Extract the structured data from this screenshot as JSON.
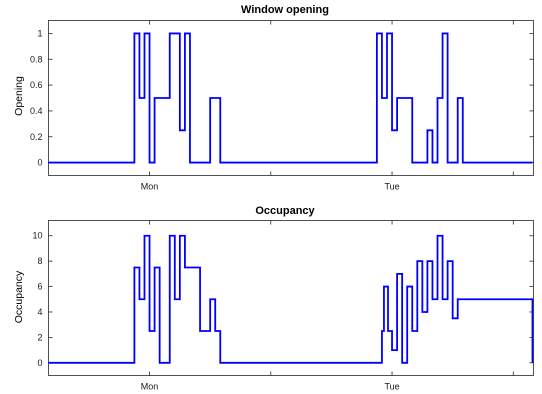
{
  "colors": {
    "series": "#0000ff",
    "axes": "#262626",
    "background": "#ffffff"
  },
  "chart_data": [
    {
      "type": "line",
      "step": true,
      "title": "Window opening",
      "xlabel": "",
      "ylabel": "Opening",
      "xlim": [
        0,
        48
      ],
      "ylim": [
        -0.1,
        1.1
      ],
      "yticks": [
        0,
        0.2,
        0.4,
        0.6,
        0.8,
        1
      ],
      "ytick_labels": [
        "0",
        "0.2",
        "0.4",
        "0.6",
        "0.8",
        "1"
      ],
      "xticks": [
        10,
        34
      ],
      "xtick_labels": [
        "Mon",
        "Tue"
      ],
      "minor_xticks": [
        22,
        46
      ],
      "grid": false,
      "series": [
        {
          "x": [
            0,
            8,
            8.5,
            9,
            9.5,
            10,
            10.5,
            11,
            12,
            12.5,
            13,
            13.5,
            14,
            14.5,
            16,
            17,
            32,
            32.5,
            33,
            33.5,
            34,
            34.5,
            35,
            36,
            37.5,
            38,
            38.5,
            39,
            39.5,
            40,
            40.5,
            41,
            47.9
          ],
          "values": [
            0,
            0,
            1,
            0.5,
            1,
            0,
            0.5,
            0.5,
            1,
            1,
            0.25,
            1,
            0,
            0,
            0.5,
            0,
            0,
            1,
            0.5,
            1,
            0.25,
            0.5,
            0.5,
            0,
            0.25,
            0,
            0.5,
            1,
            0,
            0,
            0.5,
            0,
            0
          ]
        }
      ]
    },
    {
      "type": "line",
      "step": true,
      "title": "Occupancy",
      "xlabel": "",
      "ylabel": "Occupancy",
      "xlim": [
        0,
        48
      ],
      "ylim": [
        -1,
        11.2
      ],
      "yticks": [
        0,
        2,
        4,
        6,
        8,
        10
      ],
      "ytick_labels": [
        "0",
        "2",
        "4",
        "6",
        "8",
        "10"
      ],
      "xticks": [
        10,
        34
      ],
      "xtick_labels": [
        "Mon",
        "Tue"
      ],
      "minor_xticks": [
        22,
        46
      ],
      "grid": false,
      "series": [
        {
          "x": [
            0,
            8,
            8.5,
            9,
            9.5,
            10,
            10.5,
            11,
            12,
            12.5,
            13,
            13.5,
            14,
            15,
            16,
            16.5,
            17,
            32,
            33,
            33.2,
            33.6,
            34,
            34.5,
            35,
            35.5,
            36,
            36.5,
            37,
            37.5,
            38,
            38.5,
            39,
            39.5,
            40,
            40.5,
            47.9
          ],
          "values": [
            0,
            0,
            7.5,
            5,
            10,
            2.5,
            7.5,
            0,
            10,
            5,
            10,
            7.5,
            7.5,
            2.5,
            5,
            2.5,
            0,
            0,
            2.5,
            6,
            2.5,
            1,
            7,
            0,
            6,
            2.5,
            8,
            4,
            8,
            5,
            10,
            5,
            8,
            3.5,
            5,
            0
          ]
        }
      ]
    }
  ]
}
